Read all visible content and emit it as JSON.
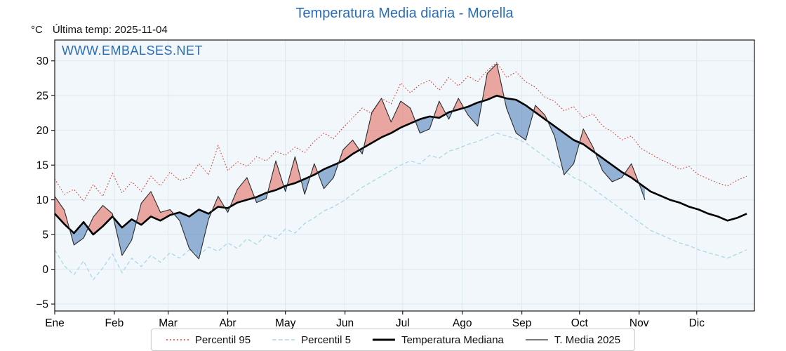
{
  "header": {
    "title": "Temperatura Media diaria - Morella",
    "unit_label": "°C",
    "last_temp_label": "Última temp: 2025-11-04",
    "watermark": "WWW.EMBALSES.NET"
  },
  "colors": {
    "title": "#2a6db5",
    "watermark": "#2a6db5",
    "axis": "#1a1a1a",
    "grid": "#dde8f0",
    "plot_bg": "#f2f7fb",
    "fill_above": "rgba(224,85,72,0.5)",
    "fill_below": "rgba(70,120,180,0.55)"
  },
  "chart_data": {
    "type": "line",
    "title": "Temperatura Media diaria - Morella",
    "xlabel": "",
    "ylabel": "°C",
    "ylim": [
      -6,
      33
    ],
    "yticks": [
      -5,
      0,
      5,
      10,
      15,
      20,
      25,
      30
    ],
    "grid": true,
    "legend_position": "bottom",
    "annotation": "Última temp: 2025-11-04",
    "months": [
      "Ene",
      "Feb",
      "Mar",
      "Abr",
      "May",
      "Jun",
      "Jul",
      "Ago",
      "Sep",
      "Oct",
      "Nov",
      "Dic"
    ],
    "month_start_days": [
      1,
      32,
      60,
      91,
      121,
      152,
      182,
      213,
      244,
      274,
      305,
      335
    ],
    "x_days": [
      1,
      6,
      11,
      16,
      21,
      26,
      31,
      36,
      41,
      46,
      51,
      56,
      61,
      66,
      71,
      76,
      81,
      86,
      91,
      96,
      101,
      106,
      111,
      116,
      121,
      126,
      131,
      136,
      141,
      146,
      151,
      156,
      161,
      166,
      171,
      176,
      181,
      186,
      191,
      196,
      201,
      206,
      211,
      216,
      221,
      226,
      231,
      236,
      241,
      246,
      251,
      256,
      261,
      266,
      271,
      276,
      281,
      286,
      291,
      296,
      301,
      306,
      311,
      316,
      321,
      326,
      331,
      336,
      341,
      346,
      351,
      356,
      361
    ],
    "series": [
      {
        "name": "Percentil 95",
        "color": "#e03a2e",
        "style": "dotted",
        "values": [
          13.0,
          10.8,
          11.5,
          9.8,
          12.2,
          10.5,
          13.8,
          11.0,
          12.6,
          11.2,
          13.4,
          12.0,
          14.0,
          12.8,
          13.2,
          15.2,
          13.6,
          17.8,
          14.2,
          15.5,
          14.8,
          16.2,
          15.6,
          17.0,
          16.4,
          17.6,
          16.8,
          18.4,
          19.6,
          18.8,
          20.4,
          21.8,
          23.2,
          22.4,
          24.6,
          23.8,
          26.8,
          25.4,
          26.6,
          27.2,
          25.8,
          27.6,
          26.4,
          27.8,
          27.0,
          28.6,
          29.8,
          27.6,
          28.4,
          27.0,
          26.2,
          24.8,
          24.2,
          22.8,
          23.4,
          21.8,
          22.4,
          20.6,
          19.8,
          18.6,
          19.2,
          17.4,
          16.6,
          15.8,
          15.2,
          14.4,
          14.8,
          13.6,
          13.0,
          12.4,
          12.0,
          12.8,
          13.4
        ]
      },
      {
        "name": "Percentil 5",
        "color": "#a9d7e8",
        "style": "dashed",
        "values": [
          2.8,
          0.5,
          -0.8,
          1.2,
          -1.5,
          0.2,
          2.2,
          -0.5,
          1.6,
          0.4,
          2.0,
          1.0,
          2.4,
          1.6,
          2.8,
          2.0,
          3.2,
          2.6,
          3.8,
          3.0,
          4.4,
          3.6,
          5.0,
          4.4,
          5.8,
          5.2,
          6.6,
          7.4,
          8.4,
          9.0,
          9.8,
          10.8,
          11.8,
          12.6,
          13.4,
          14.2,
          15.0,
          15.6,
          15.2,
          16.4,
          16.0,
          17.0,
          17.4,
          18.0,
          18.4,
          19.0,
          19.6,
          19.2,
          18.8,
          18.2,
          17.2,
          16.2,
          15.2,
          14.2,
          13.2,
          12.6,
          11.6,
          10.6,
          9.6,
          8.6,
          7.6,
          6.6,
          5.6,
          5.0,
          4.4,
          3.8,
          3.4,
          2.8,
          2.4,
          2.0,
          1.6,
          2.2,
          2.8
        ]
      },
      {
        "name": "Temperatura Mediana",
        "color": "#000000",
        "style": "solid-thick",
        "values": [
          8.0,
          6.5,
          5.2,
          6.8,
          5.0,
          6.2,
          7.6,
          6.0,
          7.2,
          6.4,
          7.6,
          7.0,
          7.8,
          8.2,
          7.6,
          8.6,
          8.0,
          9.0,
          8.8,
          9.6,
          10.0,
          10.4,
          11.0,
          11.4,
          12.0,
          12.4,
          13.0,
          13.6,
          14.4,
          15.0,
          15.6,
          16.6,
          17.4,
          18.2,
          19.0,
          19.6,
          20.4,
          21.0,
          21.6,
          22.0,
          21.8,
          22.6,
          23.0,
          23.4,
          24.0,
          24.4,
          25.0,
          24.6,
          24.4,
          23.6,
          22.6,
          21.6,
          20.6,
          19.6,
          18.6,
          18.0,
          17.0,
          16.0,
          15.0,
          14.0,
          13.2,
          12.2,
          11.2,
          10.6,
          10.0,
          9.6,
          9.0,
          8.6,
          8.0,
          7.6,
          7.0,
          7.4,
          8.0
        ]
      },
      {
        "name": "T. Media 2025",
        "color": "#2a2a2a",
        "style": "solid-thin",
        "days": [
          1,
          6,
          11,
          16,
          21,
          26,
          31,
          36,
          41,
          46,
          51,
          56,
          61,
          66,
          71,
          76,
          81,
          86,
          91,
          96,
          101,
          106,
          111,
          116,
          121,
          126,
          131,
          136,
          141,
          146,
          151,
          156,
          161,
          166,
          171,
          176,
          181,
          186,
          191,
          196,
          201,
          206,
          211,
          216,
          221,
          226,
          231,
          236,
          241,
          246,
          251,
          256,
          261,
          266,
          271,
          276,
          281,
          286,
          291,
          296,
          301,
          306,
          308
        ],
        "values": [
          10.5,
          8.5,
          3.5,
          4.5,
          7.5,
          9.2,
          8.0,
          2.0,
          4.2,
          9.5,
          11.2,
          8.2,
          8.6,
          7.0,
          3.0,
          1.5,
          7.2,
          10.5,
          8.2,
          11.5,
          13.2,
          9.6,
          10.2,
          15.6,
          11.2,
          16.2,
          10.8,
          15.2,
          11.6,
          13.2,
          17.2,
          18.6,
          16.6,
          22.6,
          24.6,
          21.2,
          24.2,
          23.2,
          19.6,
          20.2,
          24.2,
          21.6,
          24.6,
          22.2,
          20.6,
          28.2,
          29.6,
          23.2,
          19.6,
          18.6,
          23.6,
          22.2,
          19.2,
          13.6,
          15.2,
          20.2,
          17.6,
          14.2,
          12.6,
          13.2,
          15.2,
          11.6,
          10.0
        ]
      }
    ]
  }
}
